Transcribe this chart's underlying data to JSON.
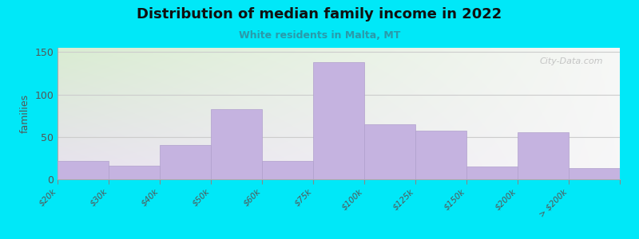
{
  "title": "Distribution of median family income in 2022",
  "subtitle": "White residents in Malta, MT",
  "ylabel": "families",
  "bin_edges_labels": [
    "$20k",
    "$30k",
    "$40k",
    "$50k",
    "$60k",
    "$75k",
    "$100k",
    "$125k",
    "$150k",
    "$200k",
    "> $200k"
  ],
  "bin_edges": [
    0,
    1,
    2,
    3,
    4,
    5,
    6,
    7,
    8,
    9,
    10,
    11
  ],
  "values": [
    22,
    16,
    40,
    83,
    22,
    138,
    65,
    57,
    15,
    55,
    13
  ],
  "bar_color": "#c5b3e0",
  "bar_edge_color": "#b0a0cc",
  "background_outer": "#00e8f8",
  "background_inner_left": "#d8ecd0",
  "background_inner_right": "#f0ecf8",
  "grid_color": "#cccccc",
  "title_color": "#111111",
  "subtitle_color": "#2a9aaa",
  "ylabel_color": "#555555",
  "tick_color": "#555555",
  "yticks": [
    0,
    50,
    100,
    150
  ],
  "ylim": [
    0,
    155
  ],
  "watermark": "City-Data.com"
}
